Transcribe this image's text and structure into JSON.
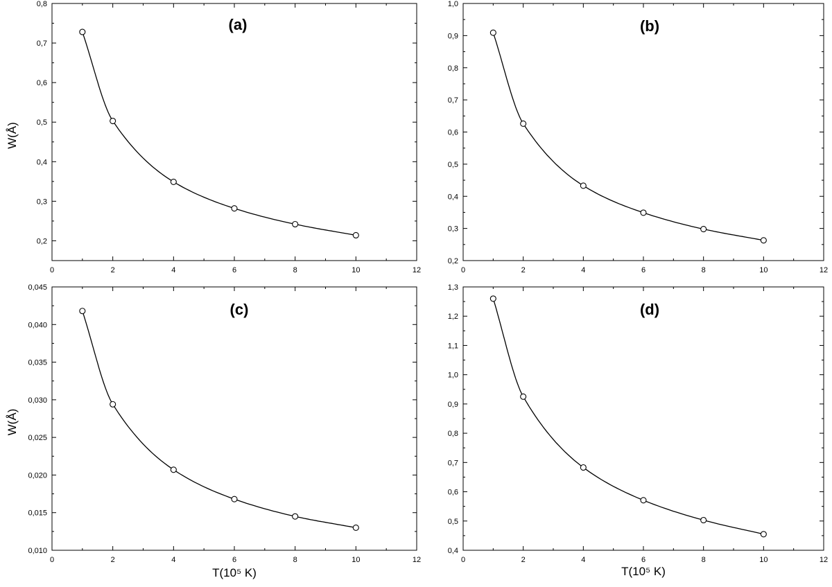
{
  "chart_data": [
    {
      "type": "scatter",
      "panel_label": "(a)",
      "ylabel": "W(Å)",
      "xlabel": "",
      "xlim": [
        0,
        12
      ],
      "ylim": [
        0.15,
        0.8
      ],
      "x_ticks": [
        0,
        2,
        4,
        6,
        8,
        10,
        12
      ],
      "x_tick_labels": [
        "0",
        "2",
        "4",
        "6",
        "8",
        "10",
        "12"
      ],
      "y_ticks": [
        0.2,
        0.3,
        0.4,
        0.5,
        0.6,
        0.7,
        0.8
      ],
      "y_tick_labels": [
        "0,2",
        "0,3",
        "0,4",
        "0,5",
        "0,6",
        "0,7",
        "0,8"
      ],
      "grid": false,
      "series": [
        {
          "x": [
            1,
            2,
            4,
            6,
            8,
            10
          ],
          "y": [
            0.728,
            0.503,
            0.349,
            0.282,
            0.242,
            0.214
          ],
          "marker": "open-circle",
          "fit_line": true
        }
      ]
    },
    {
      "type": "scatter",
      "panel_label": "(b)",
      "ylabel": "",
      "xlabel": "",
      "xlim": [
        0,
        12
      ],
      "ylim": [
        0.2,
        1.0
      ],
      "x_ticks": [
        0,
        2,
        4,
        6,
        8,
        10,
        12
      ],
      "x_tick_labels": [
        "0",
        "2",
        "4",
        "6",
        "8",
        "10",
        "12"
      ],
      "y_ticks": [
        0.2,
        0.3,
        0.4,
        0.5,
        0.6,
        0.7,
        0.8,
        0.9,
        1.0
      ],
      "y_tick_labels": [
        "0,2",
        "0,3",
        "0,4",
        "0,5",
        "0,6",
        "0,7",
        "0,8",
        "0,9",
        "1,0"
      ],
      "grid": false,
      "series": [
        {
          "x": [
            1,
            2,
            4,
            6,
            8,
            10
          ],
          "y": [
            0.909,
            0.626,
            0.433,
            0.349,
            0.298,
            0.263
          ],
          "marker": "open-circle",
          "fit_line": true
        }
      ]
    },
    {
      "type": "scatter",
      "panel_label": "(c)",
      "ylabel": "W(Å)",
      "xlabel": "T(10⁵ K)",
      "xlim": [
        0,
        12
      ],
      "ylim": [
        0.01,
        0.045
      ],
      "x_ticks": [
        0,
        2,
        4,
        6,
        8,
        10,
        12
      ],
      "x_tick_labels": [
        "0",
        "2",
        "4",
        "6",
        "8",
        "10",
        "12"
      ],
      "y_ticks": [
        0.01,
        0.015,
        0.02,
        0.025,
        0.03,
        0.035,
        0.04,
        0.045
      ],
      "y_tick_labels": [
        "0,010",
        "0,015",
        "0,020",
        "0,025",
        "0,030",
        "0,035",
        "0,040",
        "0,045"
      ],
      "grid": false,
      "series": [
        {
          "x": [
            1,
            2,
            4,
            6,
            8,
            10
          ],
          "y": [
            0.0418,
            0.0294,
            0.0207,
            0.0168,
            0.0145,
            0.013
          ],
          "marker": "open-circle",
          "fit_line": true
        }
      ]
    },
    {
      "type": "scatter",
      "panel_label": "(d)",
      "ylabel": "",
      "xlabel": "T(10⁵ K)",
      "xlim": [
        0,
        12
      ],
      "ylim": [
        0.4,
        1.3
      ],
      "x_ticks": [
        0,
        2,
        4,
        6,
        8,
        10,
        12
      ],
      "x_tick_labels": [
        "0",
        "2",
        "4",
        "6",
        "8",
        "10",
        "12"
      ],
      "y_ticks": [
        0.4,
        0.5,
        0.6,
        0.7,
        0.8,
        0.9,
        1.0,
        1.1,
        1.2,
        1.3
      ],
      "y_tick_labels": [
        "0,4",
        "0,5",
        "0,6",
        "0,7",
        "0,8",
        "0,9",
        "1,0",
        "1,1",
        "1,2",
        "1,3"
      ],
      "grid": false,
      "series": [
        {
          "x": [
            1,
            2,
            4,
            6,
            8,
            10
          ],
          "y": [
            1.26,
            0.925,
            0.683,
            0.571,
            0.503,
            0.455
          ],
          "marker": "open-circle",
          "fit_line": true
        }
      ]
    }
  ]
}
